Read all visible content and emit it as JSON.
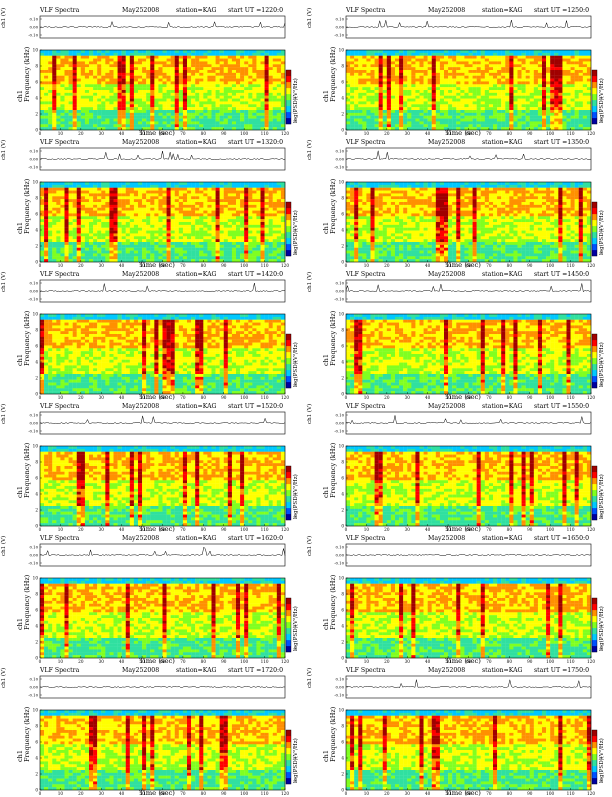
{
  "colors": {
    "spectrum": [
      "#0000a0",
      "#0050ff",
      "#00c8ff",
      "#30e0a0",
      "#80ff20",
      "#ffff00",
      "#ff9000",
      "#ff0000",
      "#a00000"
    ]
  },
  "common": {
    "title": "VLF Spectra",
    "date": "May252008",
    "station": "station=KAG",
    "start_prefix": "start UT =",
    "ch_axis_label": "ch1 (V)",
    "channel_label": "ch1",
    "freq_axis_label": "Frequency (kHz)",
    "time_axis_label": "Time (sec)",
    "colorbar_label": "log(PSD)(V²/Hz)"
  },
  "chart_data": {
    "type": "heatmap",
    "time_range": [
      0,
      120
    ],
    "time_ticks": [
      0,
      10,
      20,
      30,
      40,
      50,
      60,
      70,
      80,
      90,
      100,
      110,
      120
    ],
    "freq_range": [
      0,
      10
    ],
    "freq_ticks": [
      0,
      2,
      4,
      6,
      8,
      10
    ],
    "ch_ticks": [
      "0.10",
      "0.00",
      "-0.10"
    ],
    "colorbar_ticks": [
      "-1",
      "-2"
    ],
    "panels": [
      {
        "start_ut": "1220:0"
      },
      {
        "start_ut": "1250:0"
      },
      {
        "start_ut": "1320:0"
      },
      {
        "start_ut": "1350:0"
      },
      {
        "start_ut": "1420:0"
      },
      {
        "start_ut": "1450:0"
      },
      {
        "start_ut": "1520:0"
      },
      {
        "start_ut": "1550:0"
      },
      {
        "start_ut": "1620:0"
      },
      {
        "start_ut": "1650:0"
      },
      {
        "start_ut": "1720:0"
      },
      {
        "start_ut": "1750:0"
      }
    ]
  }
}
